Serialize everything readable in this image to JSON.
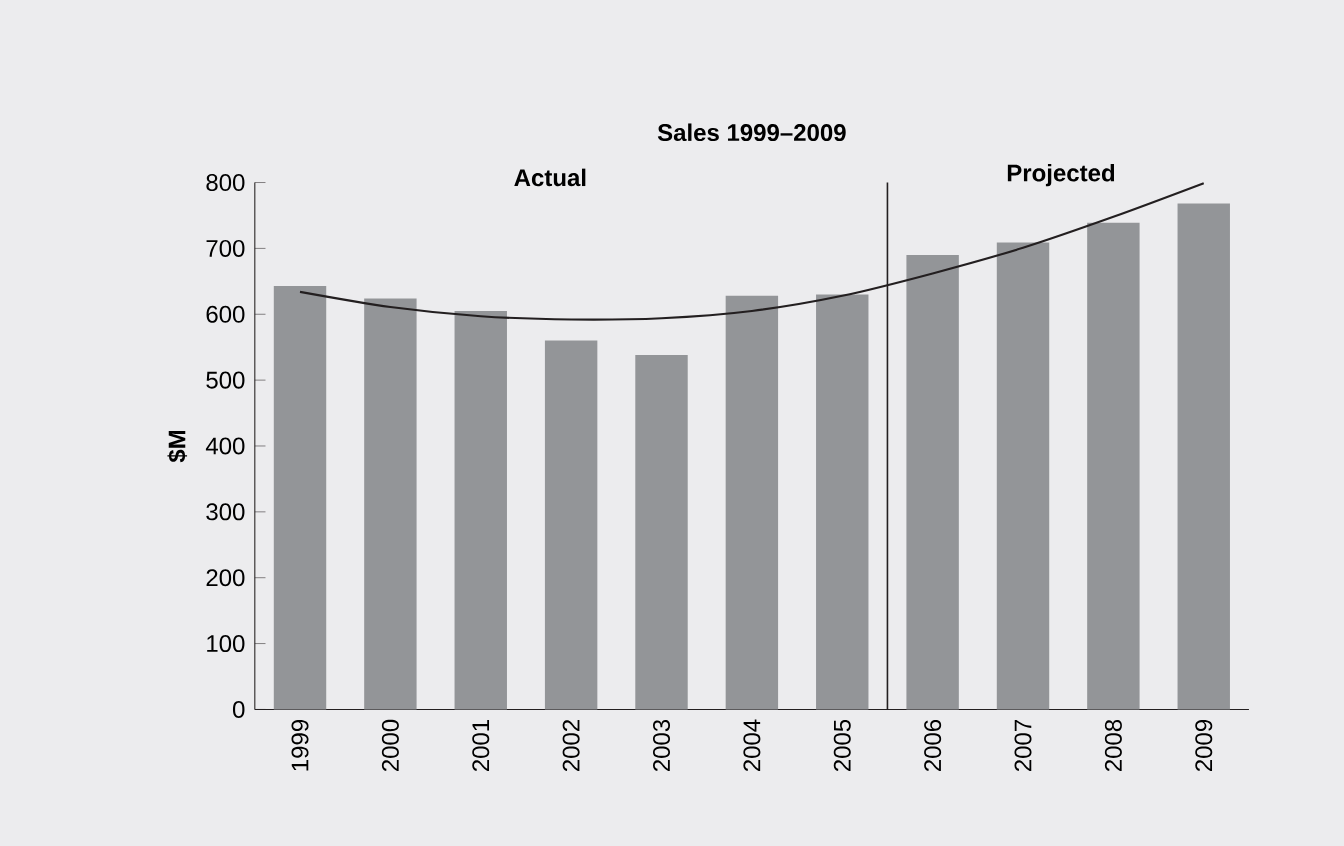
{
  "chart_data": {
    "type": "bar",
    "title": "Sales 1999–2009",
    "ylabel": "$M",
    "categories": [
      "1999",
      "2000",
      "2001",
      "2002",
      "2003",
      "2004",
      "2005",
      "2006",
      "2007",
      "2008",
      "2009"
    ],
    "series": [
      {
        "color": "#939598",
        "values": [
          643,
          624,
          605,
          560,
          538,
          628,
          630,
          690,
          709,
          739,
          768
        ]
      },
      {
        "type": "line",
        "color": "#231f20",
        "values": [
          634,
          611,
          597,
          592,
          594,
          605,
          628,
          662,
          701,
          748,
          799
        ]
      }
    ],
    "ylim": [
      0,
      800
    ],
    "yticks": [
      0,
      100,
      200,
      300,
      400,
      500,
      600,
      700,
      800
    ],
    "annotations": [
      "Actual",
      "Projected"
    ]
  }
}
